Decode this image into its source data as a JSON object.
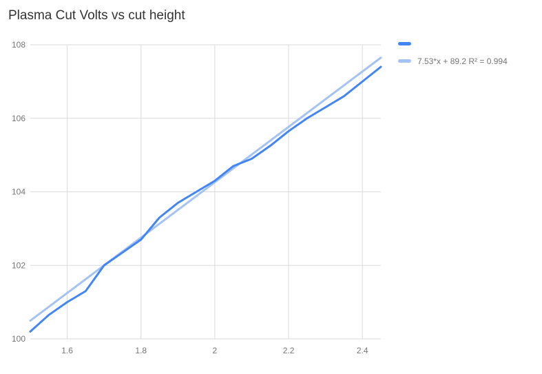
{
  "chart_data": {
    "type": "line",
    "title": "Plasma Cut Volts vs cut height",
    "x": [
      1.5,
      1.55,
      1.6,
      1.65,
      1.7,
      1.75,
      1.8,
      1.85,
      1.9,
      1.95,
      2.0,
      2.05,
      2.1,
      2.15,
      2.2,
      2.25,
      2.3,
      2.35,
      2.4,
      2.45
    ],
    "series": [
      {
        "name": "",
        "values": [
          100.2,
          100.65,
          101.0,
          101.3,
          102.0,
          102.35,
          102.7,
          103.3,
          103.7,
          104.0,
          104.3,
          104.7,
          104.9,
          105.25,
          105.65,
          106.0,
          106.3,
          106.6,
          107.0,
          107.4
        ]
      }
    ],
    "trendline": {
      "slope": 7.53,
      "intercept": 89.2,
      "r2": 0.994,
      "label": "7.53*x + 89.2 R² = 0.994"
    },
    "xlim": [
      1.5,
      2.45
    ],
    "ylim": [
      100,
      108
    ],
    "x_ticks": [
      1.6,
      1.8,
      2.0,
      2.2,
      2.4
    ],
    "x_tick_labels": [
      "1.6",
      "1.8",
      "2",
      "2.2",
      "2.4"
    ],
    "y_ticks": [
      100,
      102,
      104,
      106,
      108
    ],
    "y_tick_labels": [
      "100",
      "102",
      "104",
      "106",
      "108"
    ],
    "grid": true,
    "legend_position": "right"
  },
  "legend": {
    "items": [
      {
        "label": "",
        "color": "#4285f4"
      },
      {
        "label": "7.53*x + 89.2 R² = 0.994",
        "color": "#a4c2f4"
      }
    ]
  },
  "colors": {
    "series": "#4285f4",
    "trendline": "#a4c2f4",
    "grid": "#dadada",
    "tick_text": "#757575",
    "title_text": "#333333",
    "background": "#ffffff"
  }
}
